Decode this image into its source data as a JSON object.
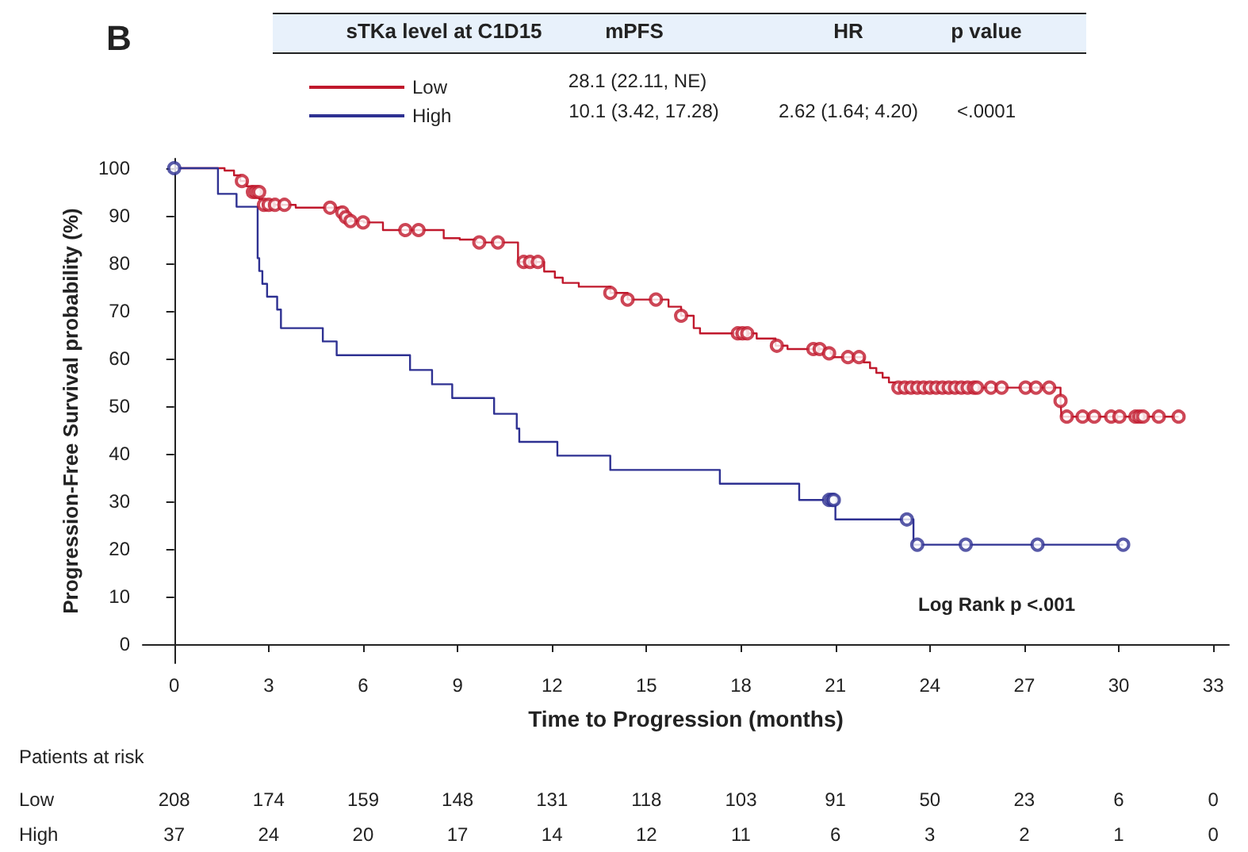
{
  "chart_data": {
    "type": "step",
    "title": "B",
    "xlabel": "Time to Progression (months)",
    "ylabel": "Progression-Free Survival probability (%)",
    "xlim": [
      -1,
      33.5
    ],
    "xticks": [
      0,
      3,
      6,
      9,
      12,
      15,
      18,
      21,
      24,
      27,
      30,
      33
    ],
    "ylim": [
      -4,
      102
    ],
    "yticks": [
      0,
      10,
      20,
      30,
      40,
      50,
      60,
      70,
      80,
      90,
      100
    ],
    "grid": false,
    "legend": "top left",
    "line_style": "solid",
    "series": [
      {
        "name": "Low",
        "color": "#c0182c",
        "x": [
          0,
          1.6,
          1.9,
          2.1,
          2.3,
          2.5,
          2.7,
          2.8,
          3.86,
          5.34,
          5.45,
          5.6,
          6.02,
          6.63,
          8.56,
          9.07,
          9.6,
          10.92,
          11.75,
          12.09,
          12.34,
          12.85,
          13.85,
          14.4,
          15.7,
          16.1,
          16.5,
          16.7,
          18.5,
          19.1,
          19.48,
          20.85,
          20.9,
          21.9,
          22.1,
          22.3,
          22.5,
          22.7,
          22.9,
          28.15,
          28.18,
          31.9
        ],
        "values": [
          100,
          99.5,
          98.5,
          97.3,
          96.2,
          95,
          93.5,
          92.3,
          91.7,
          90.7,
          89.7,
          88.9,
          88.6,
          87,
          85.3,
          85,
          84.4,
          80.3,
          78.3,
          77,
          75.9,
          75.1,
          73.8,
          72.4,
          70.9,
          69,
          66.4,
          65.3,
          64.2,
          62.7,
          62,
          61.1,
          60.3,
          59.2,
          58,
          57,
          56,
          55,
          53.9,
          51.1,
          47.8,
          47.8
        ]
      },
      {
        "name": "High",
        "color": "#2e3192",
        "x": [
          0,
          1.39,
          1.98,
          2.65,
          2.7,
          2.8,
          2.95,
          3.27,
          3.39,
          4.72,
          5.16,
          7.49,
          8.19,
          8.83,
          10.16,
          10.88,
          10.96,
          12.17,
          13.85,
          17.33,
          19.85,
          21,
          23.48,
          30.14
        ],
        "values": [
          100,
          94.6,
          91.9,
          81.1,
          78.4,
          75.7,
          73,
          70.3,
          66.4,
          63.6,
          60.7,
          57.6,
          54.6,
          51.7,
          48.4,
          45.3,
          42.5,
          39.6,
          36.6,
          33.7,
          30.3,
          26.2,
          20.9,
          20.9
        ]
      },
      {
        "type": "scatter",
        "marker": "circle",
        "color": "#c0182c",
        "x": [
          2.15,
          2.5,
          2.6,
          2.7,
          2.85,
          3,
          3.2,
          3.5,
          4.95,
          5.34,
          5.45,
          5.6,
          6,
          7.34,
          7.76,
          9.69,
          10.28,
          11.1,
          11.3,
          11.55,
          13.85,
          14.4,
          15.3,
          16.1,
          17.9,
          18.05,
          18.2,
          19.14,
          20.3,
          20.5,
          20.8,
          21.4,
          21.75,
          23,
          23.2,
          23.4,
          23.6,
          23.8,
          24,
          24.2,
          24.4,
          24.6,
          24.8,
          25,
          25.2,
          25.4,
          25.5,
          25.94,
          26.28,
          27.04,
          27.37,
          27.79,
          28.15,
          28.35,
          28.85,
          29.22,
          29.76,
          30.02,
          30.53,
          30.65,
          30.77,
          31.27,
          31.9
        ],
        "values": [
          97.3,
          95,
          95,
          95,
          92.3,
          92.3,
          92.3,
          92.3,
          91.7,
          90.7,
          89.7,
          88.9,
          88.6,
          87,
          87,
          84.4,
          84.4,
          80.3,
          80.3,
          80.3,
          73.8,
          72.4,
          72.4,
          69,
          65.3,
          65.3,
          65.3,
          62.7,
          62,
          62,
          61.1,
          60.3,
          60.3,
          53.9,
          53.9,
          53.9,
          53.9,
          53.9,
          53.9,
          53.9,
          53.9,
          53.9,
          53.9,
          53.9,
          53.9,
          53.9,
          53.9,
          53.9,
          53.9,
          53.9,
          53.9,
          53.9,
          51.1,
          47.8,
          47.8,
          47.8,
          47.8,
          47.8,
          47.8,
          47.8,
          47.8,
          47.8,
          47.8
        ]
      },
      {
        "type": "scatter",
        "marker": "circle",
        "color": "#2e3192",
        "x": [
          0,
          20.8,
          20.9,
          20.95,
          23.27,
          23.6,
          25.14,
          27.42,
          30.14
        ],
        "values": [
          100,
          30.3,
          30.3,
          30.3,
          26.2,
          20.9,
          20.9,
          20.9,
          20.9
        ]
      }
    ],
    "annotations": [
      "sTKa level at C1D15",
      "mPFS",
      "HR",
      "p value",
      "28.1 (22.11, NE)",
      "10.1 (3.42, 17.28)",
      "2.62 (1.64; 4.20)",
      "<.0001",
      "Log Rank p <.001",
      "Patients at risk",
      "208",
      "174",
      "159",
      "148",
      "131",
      "118",
      "103",
      "91",
      "50",
      "23",
      "6",
      "0",
      "37",
      "24",
      "20",
      "17",
      "14",
      "12",
      "11",
      "6",
      "3",
      "2",
      "1",
      "0"
    ]
  }
}
